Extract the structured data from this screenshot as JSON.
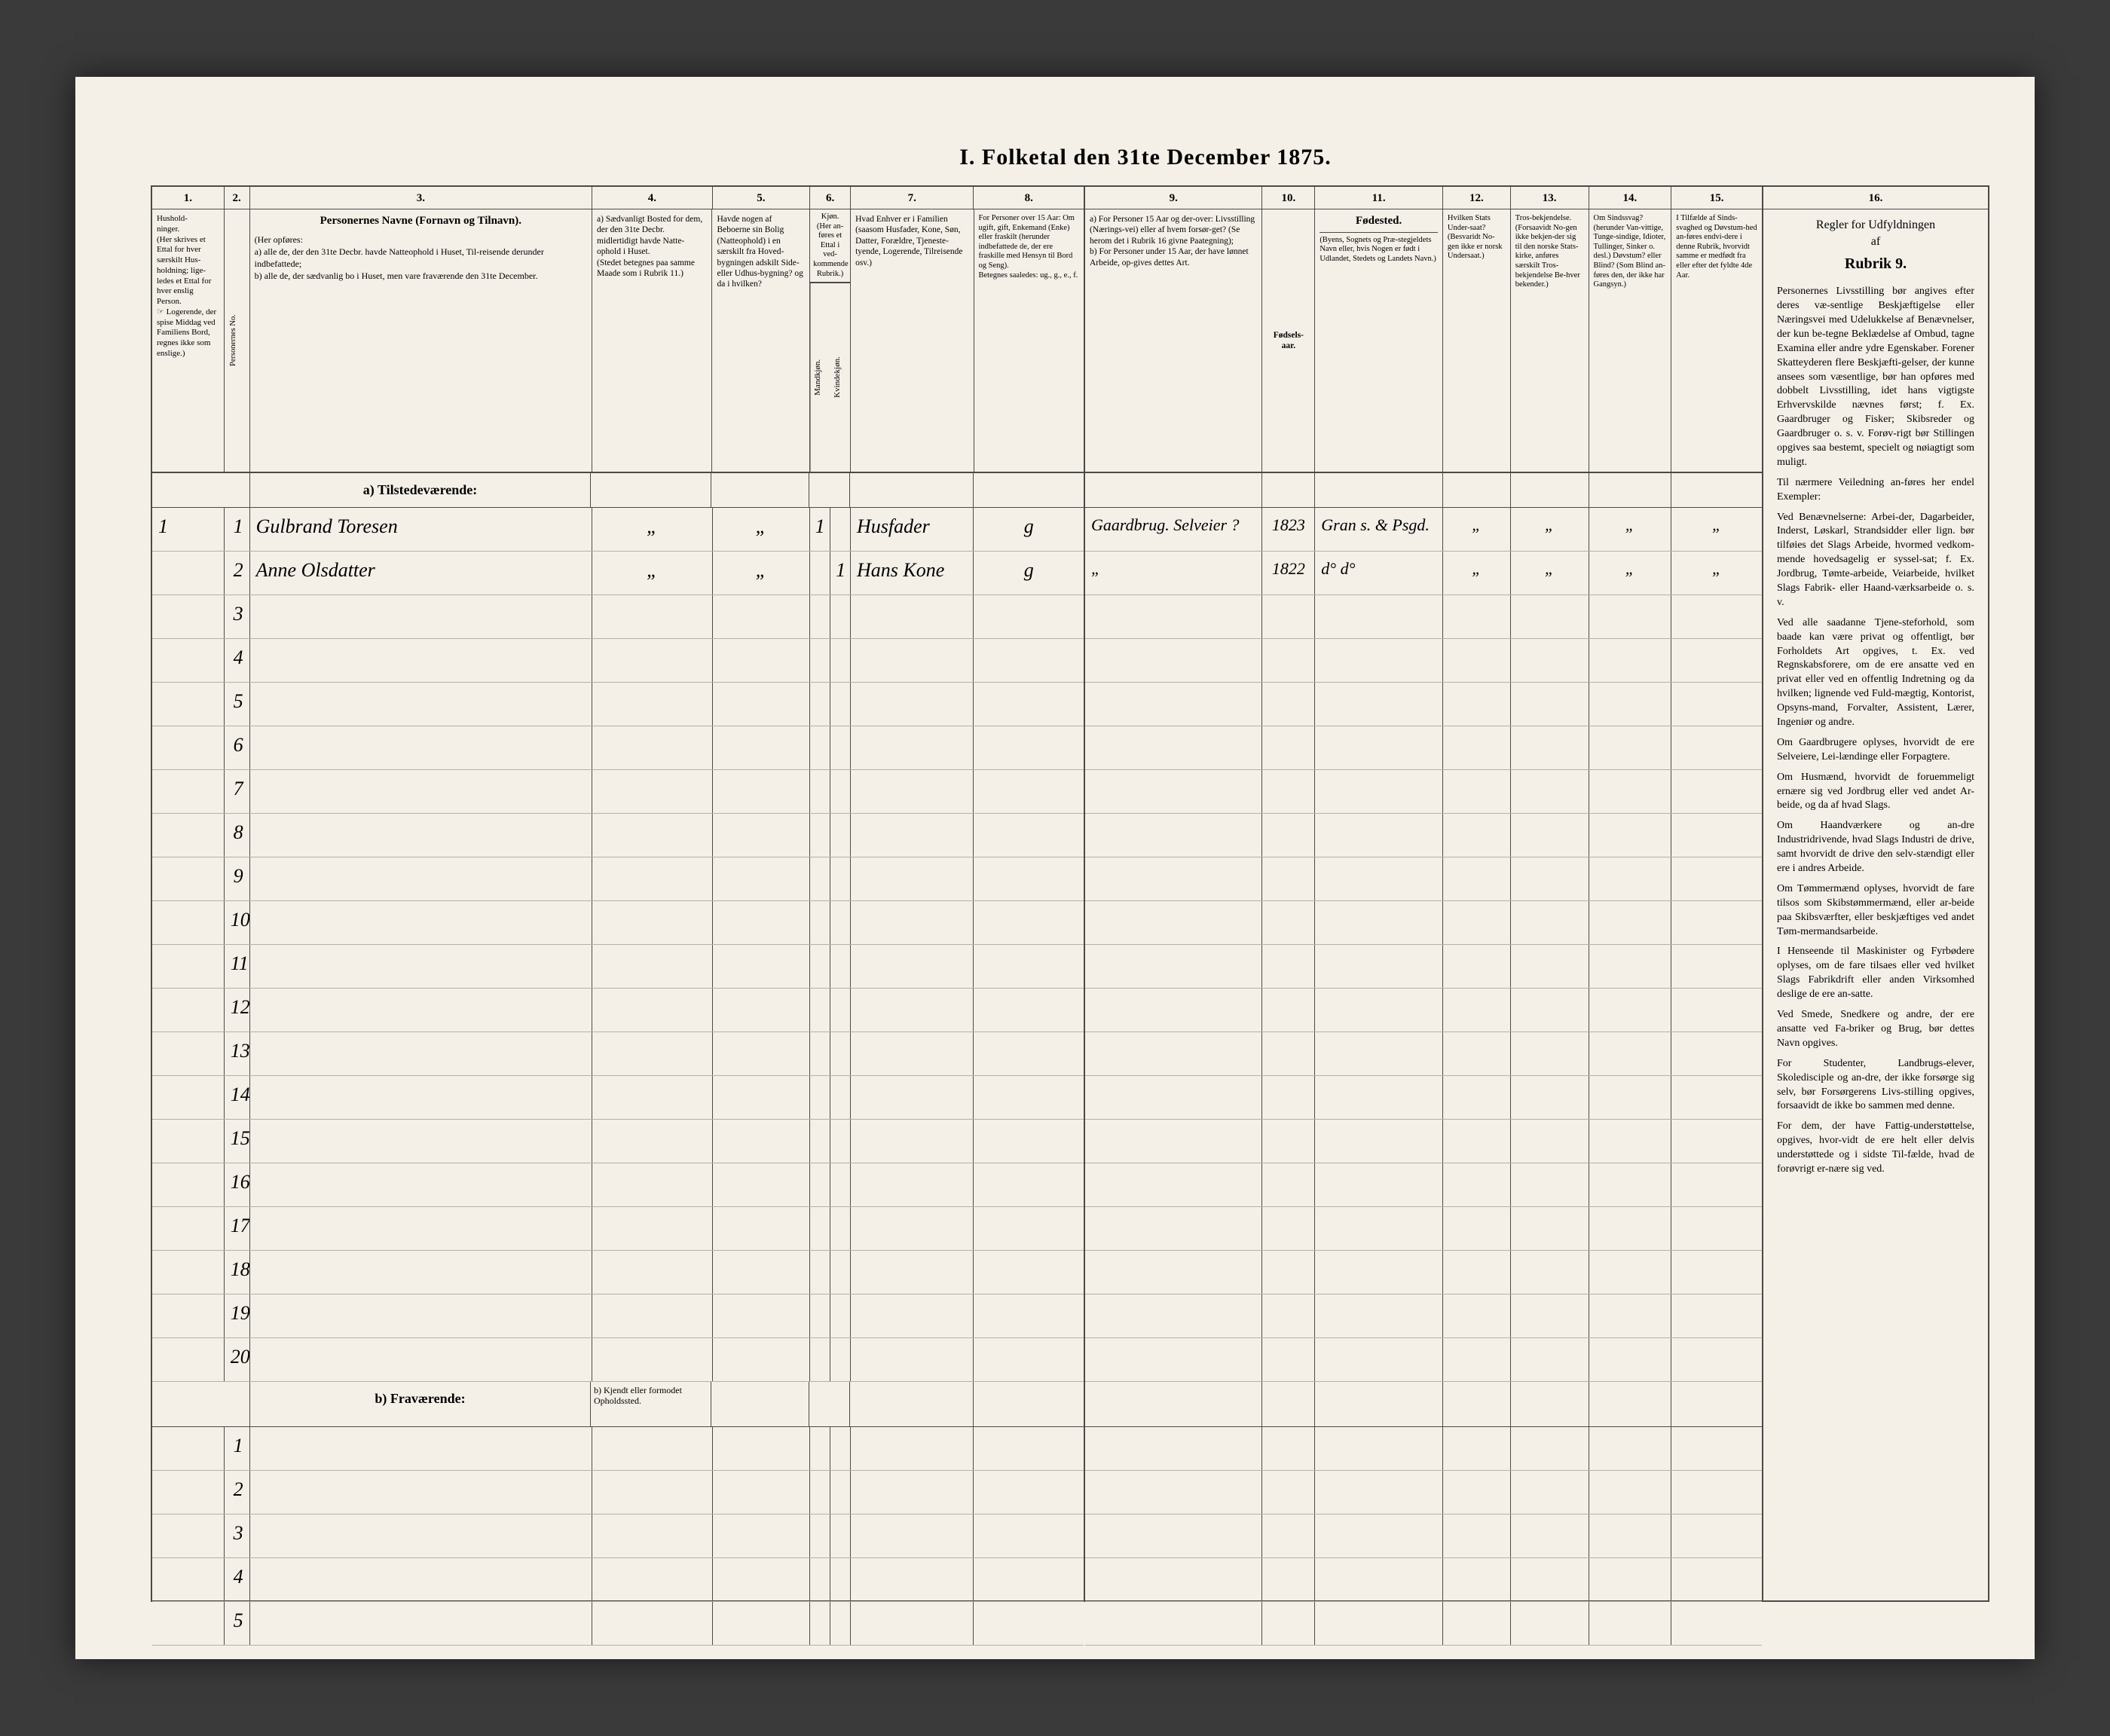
{
  "title": "I.  Folketal   den 31te December 1875.",
  "left_columns": {
    "numbers": [
      "1.",
      "2.",
      "3.",
      "4.",
      "5.",
      "6.",
      "7.",
      "8."
    ],
    "col1": "Hushold-\nninger.\n(Her skrives et Ettal for hver særskilt Hus-holdning; lige-ledes et Ettal for hver enslig Person.\n☞ Logerende, der spise Middag ved Familiens Bord, regnes ikke som enslige.)",
    "col2": "Personernes No.",
    "col3_title": "Personernes Navne (Fornavn og Tilnavn).",
    "col3_sub": "(Her opføres:\na) alle de, der den 31te Decbr. havde Natteophold i Huset, Til-reisende derunder indbefattede;\nb) alle de, der sædvanlig bo i Huset, men vare fraværende den 31te December.",
    "col4": "a) Sædvanligt Bosted for dem, der den 31te Decbr. midlertidigt havde Natte-ophold i Huset.\n(Stedet betegnes paa samme Maade som i Rubrik 11.)",
    "col5": "Havde nogen af Beboerne sin Bolig (Natteophold) i en særskilt fra Hoved-bygningen adskilt Side- eller Udhus-bygning? og da i hvilken?",
    "col6a": "Mandkjøn.",
    "col6b": "Kvindekjøn.",
    "col6_top": "Kjøn.\n(Her an-føres et Ettal i ved-kommende Rubrik.)",
    "col7": "Hvad Enhver er i Familien\n(saasom Husfader, Kone, Søn, Datter, Forældre, Tjeneste-tyende, Logerende, Tilreisende osv.)",
    "col8": "For Personer over 15 Aar: Om ugift, gift, Enkemand (Enke) eller fraskilt (herunder indbefattede de, der ere fraskille med Hensyn til Bord og Seng).\nBetegnes saaledes: ug., g., e., f."
  },
  "right_columns": {
    "numbers": [
      "9.",
      "10.",
      "11.",
      "12.",
      "13.",
      "14.",
      "15."
    ],
    "num16": "16.",
    "col9": "a) For Personer 15 Aar og der-over: Livsstilling (Nærings-vei) eller af hvem forsør-get? (Se herom det i Rubrik 16 givne Paategning);\nb) For Personer under 15 Aar, der have lønnet Arbeide, op-gives dettes Art.",
    "col10": "Fødsels-aar.",
    "col11_title": "Fødested.",
    "col11": "(Byens, Sognets og Præ-stegjeldets Navn eller, hvis Nogen er født i Udlandet, Stedets og Landets Navn.)",
    "col12": "Hvilken Stats Under-saat?\n(Besvaridt No-gen ikke er norsk Undersaat.)",
    "col13": "Tros-bekjendelse.\n(Forsaavidt No-gen ikke bekjen-der sig til den norske Stats-kirke, anføres særskilt Tros-bekjendelse Be-hver bekender.)",
    "col14": "Om Sindssvag? (herunder Van-vittige, Tunge-sindige, Idioter, Tullinger, Sinker o. desl.) Døvstum? eller Blind? (Som Blind an-føres den, der ikke har Gangsyn.)",
    "col15": "I Tilfælde af Sinds-svaghed og Døvstum-hed an-føres endvi-dere i denne Rubrik, hvorvidt samme er medfødt fra eller efter det fyldte 4de Aar."
  },
  "section_a": "a) Tilstedeværende:",
  "section_b": "b) Fraværende:",
  "section_b_note": "b) Kjendt eller formodet Opholdssted.",
  "rows_a": [
    {
      "hh": "1",
      "no": "1",
      "name": "Gulbrand Toresen",
      "c4": "„",
      "c5": "„",
      "c6a": "1",
      "c6b": "",
      "c7": "Husfader",
      "c8": "g",
      "c9": "Gaardbrug. Selveier ?",
      "c10": "1823",
      "c11": "Gran s. & Psgd.",
      "c12": "„",
      "c13": "„",
      "c14": "„",
      "c15": "„"
    },
    {
      "hh": "",
      "no": "2",
      "name": "Anne Olsdatter",
      "c4": "„",
      "c5": "„",
      "c6a": "",
      "c6b": "1",
      "c7": "Hans Kone",
      "c8": "g",
      "c9": "„",
      "c10": "1822",
      "c11": "d°  d°",
      "c12": "„",
      "c13": "„",
      "c14": "„",
      "c15": "„"
    }
  ],
  "blank_a_rows": [
    "3",
    "4",
    "5",
    "6",
    "7",
    "8",
    "9",
    "10",
    "11",
    "12",
    "13",
    "14",
    "15",
    "16",
    "17",
    "18",
    "19",
    "20"
  ],
  "blank_b_rows": [
    "1",
    "2",
    "3",
    "4",
    "5"
  ],
  "rules": {
    "title": "Regler for Udfyldningen\naf",
    "sub": "Rubrik 9.",
    "paras": [
      "Personernes Livsstilling bør angives efter deres væ-sentlige Beskjæftigelse eller Næringsvei med Udelukkelse af Benævnelser, der kun be-tegne Beklædelse af Ombud, tagne Examina eller andre ydre Egenskaber. Forener Skatteyderen flere Beskjæfti-gelser, der kunne ansees som væsentlige, bør han opføres med dobbelt Livsstilling, idet hans vigtigste Erhvervskilde nævnes først; f. Ex. Gaardbruger og Fisker; Skibsreder og Gaardbruger o. s. v. Forøv-rigt bør Stillingen opgives saa bestemt, specielt og nøiagtigt som muligt.",
      "Til nærmere Veiledning an-føres her endel Exempler:",
      "Ved Benævnelserne: Arbei-der, Dagarbeider, Inderst, Løskarl, Strandsidder eller lign. bør tilføies det Slags Arbeide, hvormed vedkom-mende hovedsagelig er syssel-sat; f. Ex. Jordbrug, Tømte-arbeide, Veiarbeide, hvilket Slags Fabrik- eller Haand-værksarbeide o. s. v.",
      "Ved alle saadanne Tjene-steforhold, som baade kan være privat og offentligt, bør Forholdets Art opgives, t. Ex. ved Regnskabsforere, om de ere ansatte ved en privat eller ved en offentlig Indretning og da hvilken; lignende ved Fuld-mægtig, Kontorist, Opsyns-mand, Forvalter, Assistent, Lærer, Ingeniør og andre.",
      "Om Gaardbrugere oplyses, hvorvidt de ere Selveiere, Lei-lændinge eller Forpagtere.",
      "Om Husmænd, hvorvidt de foruemmeligt ernære sig ved Jordbrug eller ved andet Ar-beide, og da af hvad Slags.",
      "Om Haandværkere og an-dre Industridrivende, hvad Slags Industri de drive, samt hvorvidt de drive den selv-stændigt eller ere i andres Arbeide.",
      "Om Tømmermænd oplyses, hvorvidt de fare tilsos som Skibstømmermænd, eller ar-beide paa Skibsværfter, eller beskjæftiges ved andet Tøm-mermandsarbeide.",
      "I Henseende til Maskinister og Fyrbødere oplyses, om de fare tilsaes eller ved hvilket Slags Fabrikdrift eller anden Virksomhed deslige de ere an-satte.",
      "Ved Smede, Snedkere og andre, der ere ansatte ved Fa-briker og Brug, bør dettes Navn opgives.",
      "For Studenter, Landbrugs-elever, Skoledisciple og an-dre, der ikke forsørge sig selv, bør Forsørgerens Livs-stilling opgives, forsaavidt de ikke bo sammen med denne.",
      "For dem, der have Fattig-understøttelse, opgives, hvor-vidt de ere helt eller delvis understøttede og i sidste Til-fælde, hvad de forøvrigt er-nære sig ved."
    ]
  }
}
